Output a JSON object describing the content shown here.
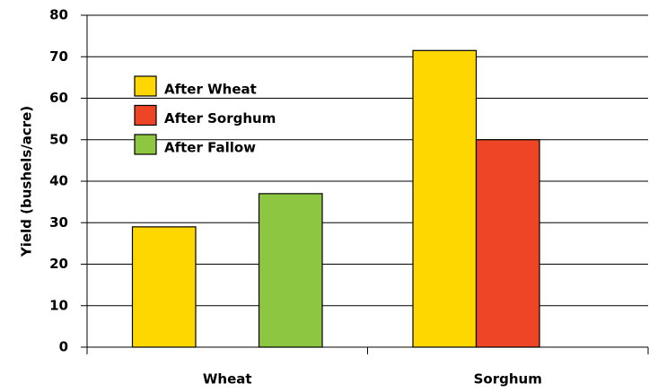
{
  "chart_data": {
    "type": "bar",
    "y_label": "Yield (bushels/acre)",
    "categories": [
      "Wheat",
      "Sorghum"
    ],
    "series": [
      {
        "name": "After Wheat",
        "color": "#ffd700",
        "values": [
          29,
          71.5
        ]
      },
      {
        "name": "After Sorghum",
        "color": "#ee4526",
        "values": [
          null,
          50
        ]
      },
      {
        "name": "After Fallow",
        "color": "#8dc641",
        "values": [
          37,
          null
        ]
      }
    ],
    "ylim": [
      0,
      80
    ],
    "yticks": [
      0,
      10,
      20,
      30,
      40,
      50,
      60,
      70,
      80
    ],
    "grid": true,
    "legend": "upper-left"
  }
}
